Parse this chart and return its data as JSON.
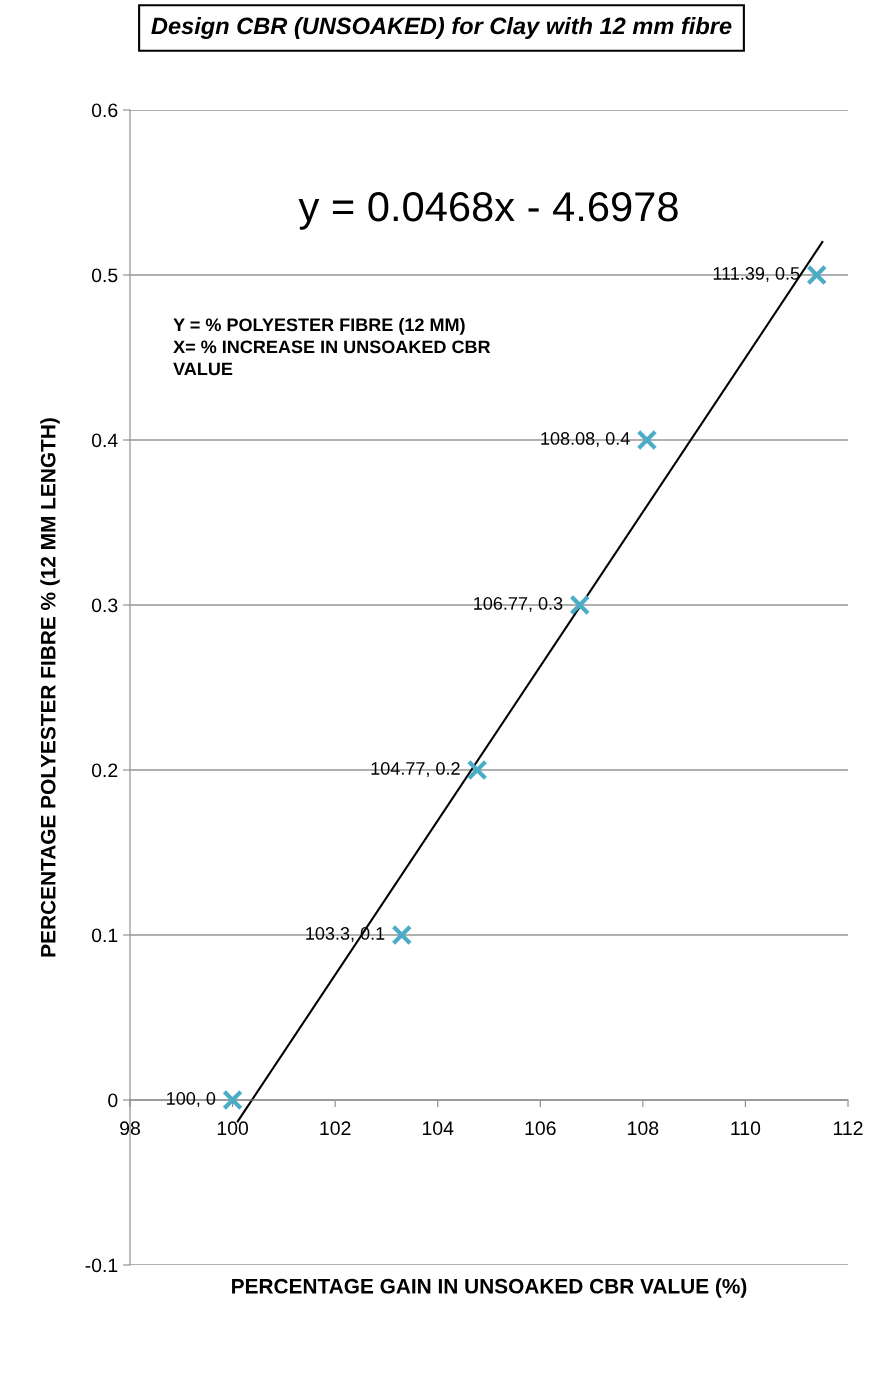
{
  "chart_data": {
    "type": "scatter",
    "title": "Design CBR (UNSOAKED) for Clay with 12 mm fibre",
    "xlabel": "PERCENTAGE GAIN IN UNSOAKED CBR VALUE (%)",
    "ylabel": "PERCENTAGE POLYESTER FIBRE % (12 MM LENGTH)",
    "annotations": [
      "y = 0.0468x - 4.6978",
      "Y = % POLYESTER FIBRE (12 MM)\nX= % INCREASE IN UNSOAKED CBR\nVALUE"
    ],
    "series": [
      {
        "color": "#4bacc6",
        "marker": "cross",
        "x": [
          100,
          103.3,
          104.77,
          106.77,
          108.08,
          111.39
        ],
        "values": [
          0,
          0.1,
          0.2,
          0.3,
          0.4,
          0.5
        ],
        "value_labels": [
          "100, 0",
          "103.3, 0.1",
          "104.77, 0.2",
          "106.77, 0.3",
          "108.08, 0.4",
          "111.39, 0.5"
        ]
      },
      {
        "type": "line",
        "color": "#000000",
        "x": [
          100.1,
          111.5
        ],
        "values": [
          -0.013,
          0.52
        ]
      }
    ],
    "xlim": [
      98,
      112
    ],
    "xticks": [
      98,
      100,
      102,
      104,
      106,
      108,
      110,
      112
    ],
    "ylim": [
      -0.1,
      0.6
    ],
    "yticks": [
      -0.1,
      0,
      0.1,
      0.2,
      0.3,
      0.4,
      0.5,
      0.6
    ],
    "grid": "y",
    "legend": false
  }
}
